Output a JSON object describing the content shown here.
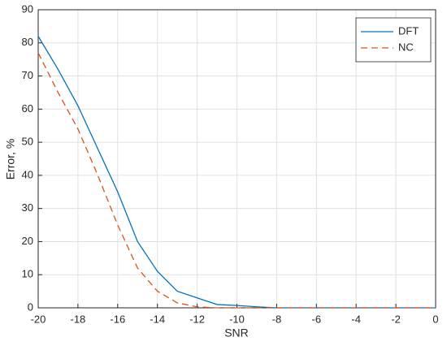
{
  "chart_data": {
    "type": "line",
    "xlabel": "SNR",
    "ylabel": "Error, %",
    "x": [
      -20,
      -19,
      -18,
      -17,
      -16,
      -15,
      -14,
      -13,
      -12,
      -11,
      -10,
      -9,
      -8,
      -7,
      -6,
      -5,
      -4,
      -3,
      -2,
      -1,
      0
    ],
    "series": [
      {
        "name": "DFT",
        "color": "#0072bd",
        "line_style": "solid",
        "values": [
          82,
          72,
          61,
          48,
          35,
          20,
          11,
          5,
          3,
          1,
          0.7,
          0.3,
          0,
          0,
          0,
          0,
          0,
          0,
          0,
          0,
          0
        ]
      },
      {
        "name": "NC",
        "color": "#d95319",
        "line_style": "dashed",
        "values": [
          77,
          65,
          54,
          40,
          25,
          12,
          5,
          1.5,
          0.3,
          0,
          0,
          0,
          0,
          0,
          0,
          0,
          0,
          0,
          0,
          0,
          0
        ]
      }
    ],
    "xlim": [
      -20,
      0
    ],
    "xticks": [
      -20,
      -18,
      -16,
      -14,
      -12,
      -10,
      -8,
      -6,
      -4,
      -2,
      0
    ],
    "ylim": [
      0,
      90
    ],
    "yticks": [
      0,
      10,
      20,
      30,
      40,
      50,
      60,
      70,
      80,
      90
    ],
    "grid": true,
    "legend": "upper right"
  }
}
